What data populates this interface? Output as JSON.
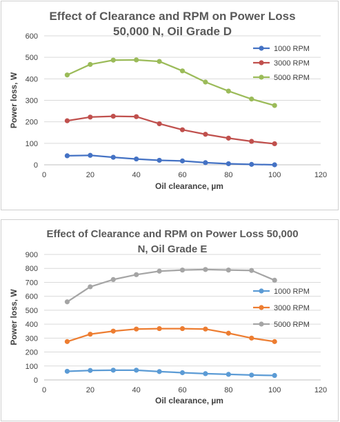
{
  "chart_data": [
    {
      "type": "line",
      "title_lines": [
        "Effect of Clearance and RPM on Power Loss",
        "50,000 N, Oil Grade D"
      ],
      "xlabel": "Oil  clearance, µm",
      "ylabel": "Power loss, W",
      "xlim": [
        0,
        120
      ],
      "ylim": [
        0,
        600
      ],
      "xticks": [
        0,
        20,
        40,
        60,
        80,
        100,
        120
      ],
      "yticks": [
        0,
        100,
        200,
        300,
        400,
        500,
        600
      ],
      "grid": true,
      "legend_position": "top-right",
      "x": [
        10,
        20,
        30,
        40,
        50,
        60,
        70,
        80,
        90,
        100
      ],
      "series": [
        {
          "name": "1000 RPM",
          "color": "#4472c4",
          "values": [
            42,
            44,
            35,
            27,
            21,
            18,
            10,
            5,
            2,
            0
          ]
        },
        {
          "name": "3000 RPM",
          "color": "#c0504d",
          "values": [
            205,
            222,
            226,
            224,
            191,
            163,
            142,
            124,
            109,
            98
          ]
        },
        {
          "name": "5000 RPM",
          "color": "#9bbb59",
          "values": [
            418,
            467,
            487,
            488,
            481,
            437,
            385,
            343,
            306,
            276
          ]
        }
      ]
    },
    {
      "type": "line",
      "title_lines": [
        "Effect of Clearance and RPM on Power Loss 50,000",
        "N, Oil Grade E"
      ],
      "xlabel": "Oil clearance, µm",
      "ylabel": "Power loss, W",
      "xlim": [
        0,
        120
      ],
      "ylim": [
        0,
        900
      ],
      "xticks": [
        0,
        20,
        40,
        60,
        80,
        100,
        120
      ],
      "yticks": [
        0,
        100,
        200,
        300,
        400,
        500,
        600,
        700,
        800,
        900
      ],
      "grid": true,
      "legend_position": "right",
      "x": [
        10,
        20,
        30,
        40,
        50,
        60,
        70,
        80,
        90,
        100
      ],
      "series": [
        {
          "name": "1000 RPM",
          "color": "#5b9bd5",
          "values": [
            62,
            68,
            70,
            70,
            60,
            52,
            45,
            40,
            35,
            32
          ]
        },
        {
          "name": "3000 RPM",
          "color": "#ed7d31",
          "values": [
            275,
            328,
            350,
            365,
            368,
            368,
            365,
            335,
            300,
            275
          ]
        },
        {
          "name": "5000 RPM",
          "color": "#a5a5a5",
          "values": [
            560,
            668,
            720,
            755,
            780,
            788,
            792,
            788,
            785,
            715
          ]
        }
      ]
    }
  ]
}
